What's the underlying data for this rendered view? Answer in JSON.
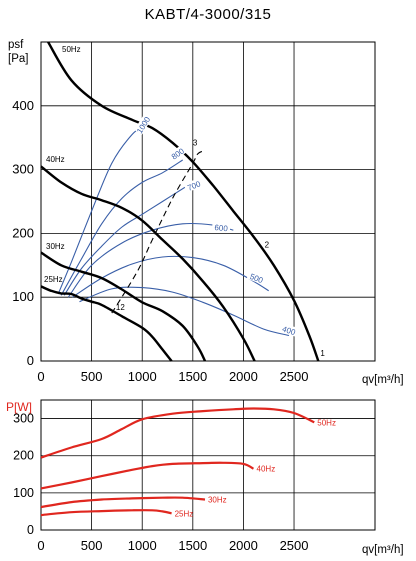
{
  "title": "KABT/4-3000/315",
  "chart_data": [
    {
      "type": "line",
      "title": "KABT/4-3000/315",
      "ylabel_line1": "psf",
      "ylabel_line2": "[Pa]",
      "xlabel": "qv[m³/h]",
      "xlim": [
        0,
        3300
      ],
      "ylim": [
        0,
        500
      ],
      "xticks": [
        0,
        500,
        1000,
        1500,
        2000,
        2500
      ],
      "yticks": [
        0,
        100,
        200,
        300,
        400
      ],
      "grid": true,
      "colors": {
        "fan_curve": "#000000",
        "efficiency_curve": "#3a5fa8",
        "system_line": "#000000"
      },
      "fan_curves": [
        {
          "name": "50Hz",
          "x": [
            70,
            300,
            600,
            900,
            1100,
            1300,
            1500,
            1700,
            1900,
            2100,
            2300,
            2500,
            2650,
            2740
          ],
          "y": [
            500,
            440,
            400,
            378,
            365,
            342,
            312,
            275,
            235,
            195,
            150,
            95,
            40,
            0
          ]
        },
        {
          "name": "40Hz",
          "x": [
            0,
            200,
            400,
            600,
            800,
            1000,
            1200,
            1400,
            1600,
            1800,
            2000,
            2110
          ],
          "y": [
            305,
            280,
            262,
            252,
            240,
            220,
            190,
            160,
            125,
            85,
            35,
            0
          ]
        },
        {
          "name": "30Hz",
          "x": [
            0,
            200,
            400,
            600,
            800,
            1000,
            1200,
            1400,
            1550,
            1620
          ],
          "y": [
            170,
            150,
            140,
            130,
            112,
            92,
            78,
            55,
            22,
            0
          ]
        },
        {
          "name": "25Hz",
          "x": [
            0,
            100,
            200,
            300,
            400,
            500,
            600,
            800,
            1000,
            1100,
            1200,
            1290
          ],
          "y": [
            117,
            110,
            106,
            105,
            98,
            93,
            88,
            70,
            52,
            38,
            18,
            0
          ]
        }
      ],
      "efficiency_curves": [
        {
          "name": "1000",
          "x": [
            170,
            300,
            500,
            700,
            900,
            1050
          ],
          "y": [
            105,
            155,
            235,
            310,
            355,
            372
          ]
        },
        {
          "name": "800",
          "x": [
            200,
            400,
            600,
            800,
            1000,
            1200,
            1400
          ],
          "y": [
            103,
            160,
            215,
            255,
            280,
            295,
            315
          ]
        },
        {
          "name": "700",
          "x": [
            230,
            400,
            600,
            800,
            1000,
            1200,
            1450
          ],
          "y": [
            103,
            145,
            180,
            210,
            230,
            250,
            275
          ]
        },
        {
          "name": "600",
          "x": [
            270,
            500,
            800,
            1100,
            1400,
            1700,
            1900
          ],
          "y": [
            100,
            150,
            185,
            205,
            215,
            213,
            205
          ]
        },
        {
          "name": "500",
          "x": [
            310,
            600,
            900,
            1200,
            1500,
            1800,
            2100,
            2250
          ],
          "y": [
            100,
            130,
            152,
            163,
            162,
            150,
            125,
            110
          ]
        },
        {
          "name": "400",
          "x": [
            380,
            700,
            1000,
            1300,
            1600,
            1900,
            2200,
            2450
          ],
          "y": [
            93,
            113,
            115,
            108,
            92,
            72,
            50,
            40
          ]
        }
      ],
      "system_lines": [
        {
          "x": [
            700,
            950,
            1100,
            1300,
            1500,
            1550,
            1620
          ],
          "y": [
            75,
            140,
            190,
            255,
            310,
            325,
            330
          ]
        }
      ],
      "point_labels": [
        {
          "text": "1",
          "x": 2760,
          "y": 8
        },
        {
          "text": "2",
          "x": 2210,
          "y": 178
        },
        {
          "text": "3",
          "x": 1500,
          "y": 338
        },
        {
          "text": "12",
          "x": 740,
          "y": 80
        }
      ]
    },
    {
      "type": "line",
      "ylabel": "P[W]",
      "xlabel": "qv[m³/h]",
      "xlim": [
        0,
        3300
      ],
      "ylim": [
        0,
        350
      ],
      "xticks": [
        0,
        500,
        1000,
        1500,
        2000,
        2500
      ],
      "yticks": [
        0,
        100,
        200,
        300
      ],
      "grid": true,
      "colors": {
        "power_curve": "#e0271f"
      },
      "series": [
        {
          "name": "50Hz",
          "x": [
            0,
            300,
            600,
            800,
            1000,
            1300,
            1600,
            1900,
            2100,
            2300,
            2500,
            2700
          ],
          "y": [
            195,
            222,
            245,
            272,
            298,
            313,
            320,
            325,
            327,
            325,
            315,
            290
          ]
        },
        {
          "name": "40Hz",
          "x": [
            0,
            300,
            600,
            900,
            1100,
            1300,
            1600,
            1800,
            2000,
            2100
          ],
          "y": [
            112,
            128,
            145,
            162,
            172,
            178,
            180,
            181,
            178,
            165
          ]
        },
        {
          "name": "30Hz",
          "x": [
            0,
            300,
            600,
            900,
            1200,
            1400,
            1620
          ],
          "y": [
            62,
            75,
            82,
            85,
            87,
            87,
            82
          ]
        },
        {
          "name": "25Hz",
          "x": [
            0,
            300,
            600,
            900,
            1100,
            1200,
            1290
          ],
          "y": [
            40,
            48,
            51,
            53,
            53,
            50,
            45
          ]
        }
      ]
    }
  ]
}
